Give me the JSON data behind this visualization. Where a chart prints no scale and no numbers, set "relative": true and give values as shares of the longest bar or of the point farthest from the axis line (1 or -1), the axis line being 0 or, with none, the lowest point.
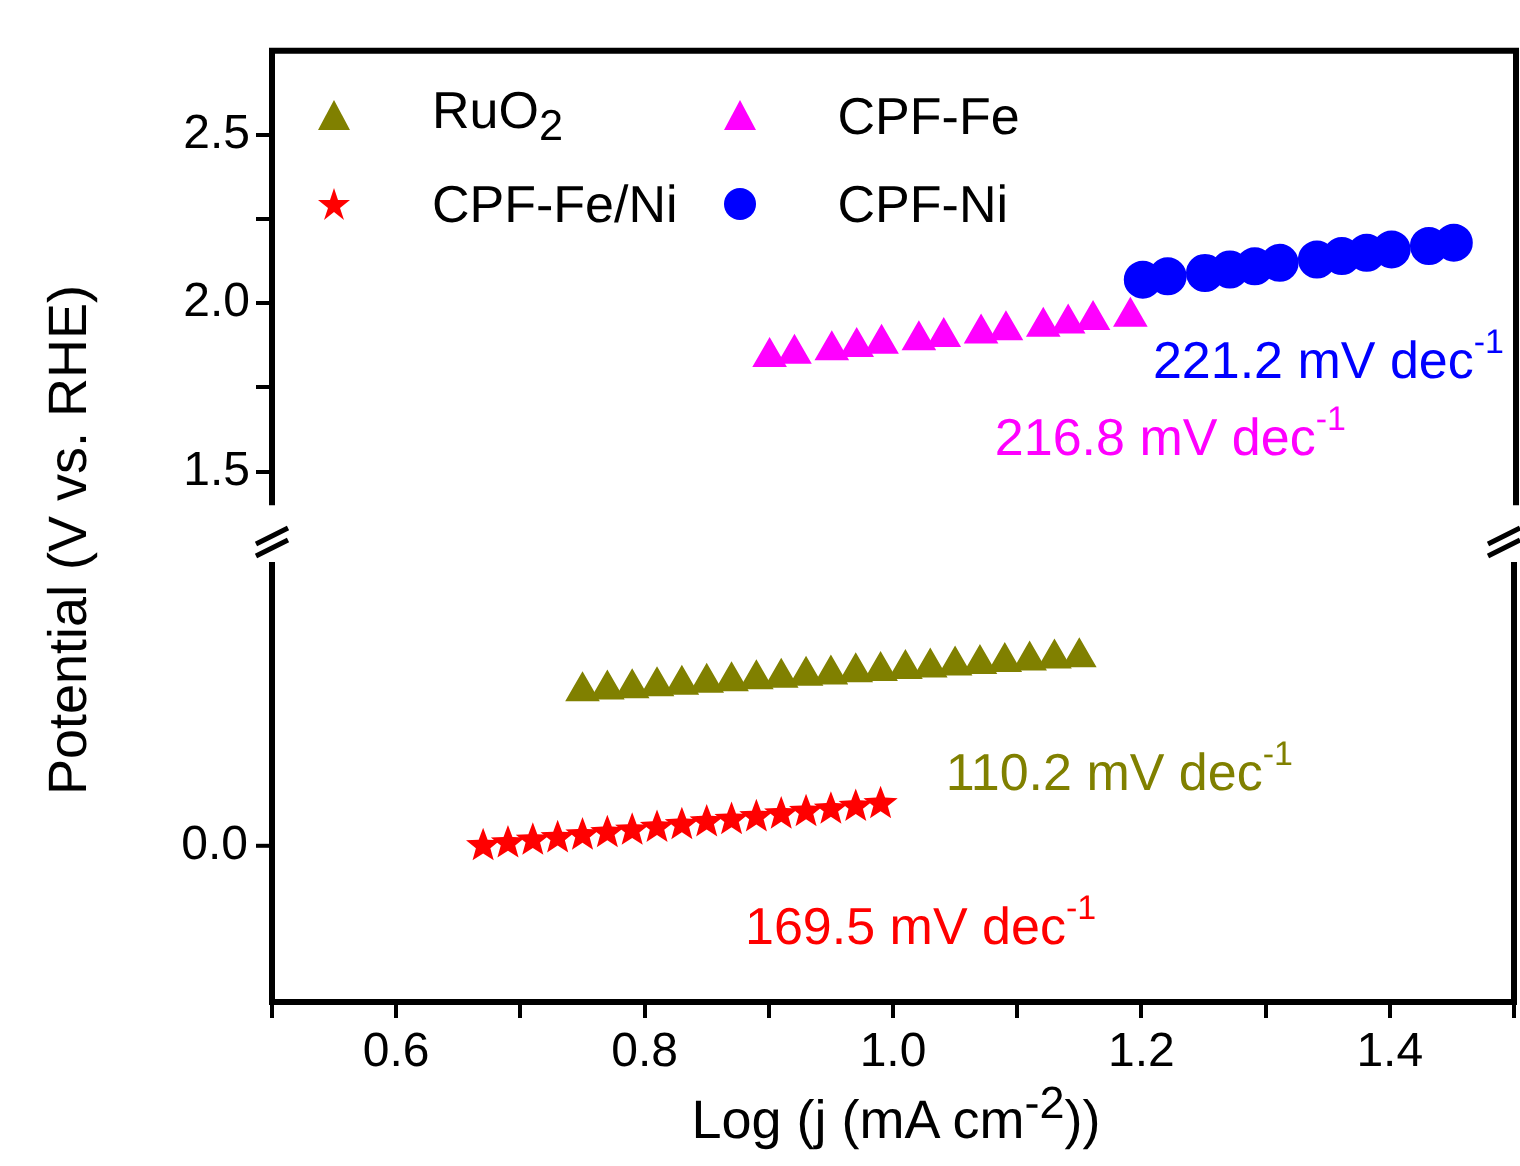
{
  "chart_data": [
    {
      "type": "scatter",
      "ylabel": "Potential (V vs. RHE)",
      "xlim": [
        0.5,
        1.5
      ],
      "ylim": [
        1.4,
        2.75
      ],
      "yticks": [
        1.5,
        {
          "value": 1.75,
          "label": null
        },
        {
          "value": 2,
          "label": "2.0"
        },
        {
          "value": 2.25,
          "label": null
        },
        2.5
      ],
      "tick_labels": "y",
      "legend": "top left",
      "series": [
        {
          "name": "CPF-Fe",
          "color": "#ff00ff",
          "marker": "triangle",
          "x": [
            0.9,
            0.92,
            0.95,
            0.97,
            0.99,
            1.02,
            1.04,
            1.07,
            1.09,
            1.12,
            1.14,
            1.16,
            1.19
          ],
          "values": [
            1.84,
            1.85,
            1.86,
            1.87,
            1.88,
            1.89,
            1.9,
            1.91,
            1.92,
            1.93,
            1.94,
            1.95,
            1.96
          ]
        },
        {
          "name": "CPF-Ni",
          "color": "#0000ff",
          "marker": "circle",
          "x": [
            1.2,
            1.22,
            1.25,
            1.27,
            1.29,
            1.31,
            1.34,
            1.36,
            1.38,
            1.4,
            1.43,
            1.45
          ],
          "values": [
            2.07,
            2.08,
            2.09,
            2.1,
            2.11,
            2.12,
            2.13,
            2.14,
            2.15,
            2.16,
            2.17,
            2.18
          ]
        }
      ],
      "annotations": [
        "216.8 mV dec$^{-1}$",
        "221.2 mV dec$^{-1}$"
      ]
    },
    {
      "type": "scatter",
      "relative": true,
      "legend": "top left",
      "xlabel": "Log (j (mA cm$^{-2}$))",
      "xlim": [
        0.5,
        1.5
      ],
      "xticks": [
        {
          "value": 0.5,
          "label": null
        },
        0.6,
        {
          "value": 0.7,
          "label": null
        },
        0.8,
        {
          "value": 0.9,
          "label": null
        },
        {
          "value": 1,
          "label": "1.0"
        },
        {
          "value": 1.1,
          "label": null
        },
        1.2,
        {
          "value": 1.3,
          "label": null
        },
        1.4,
        {
          "value": 1.5,
          "label": null
        }
      ],
      "series": [
        {
          "name": "RuO$_{2}$",
          "color": "#808000",
          "marker": "triangle",
          "x": [
            0.75,
            0.77,
            0.79,
            0.81,
            0.83,
            0.85,
            0.87,
            0.89,
            0.91,
            0.93,
            0.95,
            0.97,
            0.99,
            1.01,
            1.03,
            1.05,
            1.07,
            1.09,
            1.11,
            1.13,
            1.15
          ],
          "values": [
            0.901,
            0.906,
            0.91,
            0.916,
            0.92,
            0.926,
            0.93,
            0.936,
            0.94,
            0.946,
            0.95,
            0.956,
            0.96,
            0.966,
            0.97,
            0.976,
            0.98,
            0.986,
            0.99,
            0.996,
            1
          ]
        },
        {
          "name": "CPF-Fe/Ni",
          "color": "#ff0000",
          "marker": "star",
          "x": [
            0.67,
            0.69,
            0.71,
            0.73,
            0.75,
            0.77,
            0.79,
            0.81,
            0.83,
            0.85,
            0.87,
            0.89,
            0.91,
            0.93,
            0.95,
            0.97,
            0.99
          ],
          "values": [
            0.453,
            0.461,
            0.469,
            0.476,
            0.484,
            0.491,
            0.498,
            0.506,
            0.514,
            0.522,
            0.529,
            0.537,
            0.545,
            0.552,
            0.559,
            0.567,
            0.575
          ]
        }
      ],
      "annotations": [
        "110.2 mV dec$^{-1}$",
        "169.5 mV dec$^{-1}$",
        "0.0"
      ]
    }
  ]
}
